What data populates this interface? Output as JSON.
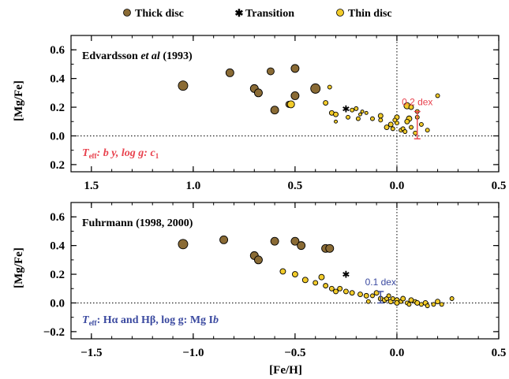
{
  "colors": {
    "thick": "#8a6b35",
    "thin": "#f2cb2a",
    "transition": "#000000",
    "red_annotation": "#e8424e",
    "blue_annotation": "#3b4aa0",
    "axis": "#000000"
  },
  "legend": {
    "items": [
      {
        "key": "thick",
        "label": "Thick disc",
        "marker": "brown-circle"
      },
      {
        "key": "transition",
        "label": "Transition",
        "marker": "black-star"
      },
      {
        "key": "thin",
        "label": "Thin disc",
        "marker": "yellow-circle"
      }
    ]
  },
  "chart_data": [
    {
      "type": "scatter",
      "title": "Edvardsson et al (1993)",
      "title_parts": {
        "pre": "Edvardsson ",
        "italic": "et al",
        "post": " (1993)"
      },
      "xlabel": "",
      "ylabel": "[Mg/Fe]",
      "xlim": [
        1.6,
        -0.5
      ],
      "ylim": [
        -0.25,
        0.7
      ],
      "xticks": [
        1.5,
        1.0,
        0.5,
        0.0,
        -0.5
      ],
      "xtick_labels": [
        "1.5",
        "1.0",
        "0.5",
        "0.0",
        "0.5"
      ],
      "yticks": [
        0.6,
        0.4,
        0.2,
        0.0,
        -0.2
      ],
      "ytick_labels": [
        "0.6",
        "0.4",
        "0.2",
        "0.0",
        "0.2"
      ],
      "annotation": {
        "text": "0.2 dex",
        "x": -0.1,
        "y_low": -0.02,
        "y_high": 0.17
      },
      "method_label": {
        "teff": "eff",
        "rest": ": b     y, log g: c",
        "sub": "1"
      },
      "series": [
        {
          "name": "Thick disc",
          "key": "thick",
          "points": [
            [
              1.05,
              0.35,
              6
            ],
            [
              0.82,
              0.44,
              5
            ],
            [
              0.7,
              0.33,
              5
            ],
            [
              0.68,
              0.3,
              5
            ],
            [
              0.6,
              0.18,
              5
            ],
            [
              0.62,
              0.45,
              4.5
            ],
            [
              0.5,
              0.47,
              5
            ],
            [
              0.5,
              0.28,
              5
            ],
            [
              0.4,
              0.33,
              6
            ],
            [
              0.53,
              0.22,
              4
            ]
          ]
        },
        {
          "name": "Transition",
          "key": "transition",
          "points": [
            [
              0.25,
              0.19,
              4
            ]
          ]
        },
        {
          "name": "Thin disc",
          "key": "thin",
          "points": [
            [
              0.52,
              0.22,
              4.5
            ],
            [
              0.33,
              0.34,
              2.5
            ],
            [
              0.35,
              0.23,
              3
            ],
            [
              0.32,
              0.16,
              3
            ],
            [
              0.3,
              0.15,
              3
            ],
            [
              0.3,
              0.1,
              2
            ],
            [
              0.24,
              0.13,
              2.5
            ],
            [
              0.22,
              0.18,
              2.5
            ],
            [
              0.2,
              0.19,
              2.5
            ],
            [
              0.19,
              0.12,
              2.5
            ],
            [
              0.18,
              0.15,
              2
            ],
            [
              0.17,
              0.17,
              2
            ],
            [
              0.15,
              0.16,
              2
            ],
            [
              0.12,
              0.12,
              2.5
            ],
            [
              0.08,
              0.14,
              3
            ],
            [
              0.08,
              0.11,
              2.5
            ],
            [
              0.05,
              0.06,
              3
            ],
            [
              0.03,
              0.08,
              3
            ],
            [
              0.02,
              0.05,
              2.5
            ],
            [
              0.0,
              0.13,
              3
            ],
            [
              0.0,
              0.09,
              2.5
            ],
            [
              -0.02,
              0.04,
              2.5
            ],
            [
              -0.03,
              0.05,
              2.5
            ],
            [
              -0.05,
              0.21,
              4
            ],
            [
              -0.07,
              0.2,
              3
            ],
            [
              -0.06,
              0.12,
              3.5
            ],
            [
              -0.05,
              0.1,
              3
            ],
            [
              -0.07,
              0.06,
              2.5
            ],
            [
              -0.1,
              0.17,
              2.5
            ],
            [
              -0.1,
              0.13,
              2.5
            ],
            [
              -0.12,
              0.08,
              2.5
            ],
            [
              -0.15,
              0.04,
              2.5
            ],
            [
              -0.2,
              0.28,
              2.5
            ],
            [
              -0.04,
              0.03,
              2.5
            ],
            [
              0.01,
              0.11,
              2.5
            ],
            [
              -0.09,
              0.02,
              2.5
            ]
          ]
        }
      ]
    },
    {
      "type": "scatter",
      "title": "Fuhrmann (1998, 2000)",
      "xlabel": "[Fe/H]",
      "ylabel": "[Mg/Fe]",
      "xlim": [
        -1.6,
        0.5
      ],
      "ylim": [
        -0.25,
        0.7
      ],
      "xticks": [
        -1.5,
        -1.0,
        -0.5,
        0.0,
        0.5
      ],
      "xtick_labels": [
        "−1.5",
        "−1.0",
        "−0.5",
        "0.0",
        "0.5"
      ],
      "yticks": [
        0.6,
        0.4,
        0.2,
        0.0,
        -0.2
      ],
      "ytick_labels": [
        "0.6",
        "0.4",
        "0.2",
        "0.0",
        "−0.2"
      ],
      "annotation": {
        "text": "0.1 dex",
        "x": -0.08,
        "y_low": 0.0,
        "y_high": 0.08
      },
      "method_label": {
        "teff": "eff",
        "rest": ": Hα and Hβ, log g: Mg I",
        "tail": "b"
      },
      "series": [
        {
          "name": "Thick disc",
          "key": "thick",
          "points": [
            [
              -1.05,
              0.41,
              6
            ],
            [
              -0.85,
              0.44,
              5
            ],
            [
              -0.7,
              0.33,
              5
            ],
            [
              -0.68,
              0.3,
              5
            ],
            [
              -0.6,
              0.43,
              5
            ],
            [
              -0.5,
              0.43,
              5
            ],
            [
              -0.47,
              0.4,
              5
            ],
            [
              -0.35,
              0.38,
              5
            ],
            [
              -0.33,
              0.38,
              5
            ]
          ]
        },
        {
          "name": "Transition",
          "key": "transition",
          "points": [
            [
              -0.25,
              0.2,
              4
            ]
          ]
        },
        {
          "name": "Thin disc",
          "key": "thin",
          "points": [
            [
              -0.56,
              0.22,
              3.5
            ],
            [
              -0.5,
              0.2,
              3.5
            ],
            [
              -0.45,
              0.16,
              3.5
            ],
            [
              -0.4,
              0.14,
              3
            ],
            [
              -0.37,
              0.18,
              3.5
            ],
            [
              -0.35,
              0.12,
              3
            ],
            [
              -0.32,
              0.1,
              3
            ],
            [
              -0.3,
              0.08,
              3
            ],
            [
              -0.28,
              0.1,
              3
            ],
            [
              -0.25,
              0.08,
              3
            ],
            [
              -0.22,
              0.07,
              3
            ],
            [
              -0.18,
              0.06,
              3
            ],
            [
              -0.15,
              0.05,
              3
            ],
            [
              -0.12,
              0.05,
              2.5
            ],
            [
              -0.1,
              0.07,
              3
            ],
            [
              -0.08,
              0.03,
              3
            ],
            [
              -0.06,
              0.02,
              3
            ],
            [
              -0.05,
              0.03,
              2.5
            ],
            [
              -0.03,
              0.01,
              3
            ],
            [
              -0.02,
              0.03,
              2.5
            ],
            [
              0.0,
              0.02,
              3
            ],
            [
              0.0,
              0.0,
              3
            ],
            [
              0.02,
              0.01,
              2.5
            ],
            [
              0.03,
              0.03,
              3
            ],
            [
              0.05,
              0.0,
              2.5
            ],
            [
              0.07,
              0.02,
              3
            ],
            [
              0.09,
              0.01,
              2.5
            ],
            [
              0.1,
              0.0,
              3
            ],
            [
              0.12,
              -0.01,
              2.5
            ],
            [
              0.14,
              0.0,
              3
            ],
            [
              0.15,
              -0.02,
              2.5
            ],
            [
              0.18,
              -0.01,
              2.5
            ],
            [
              0.2,
              0.01,
              3
            ],
            [
              0.22,
              -0.01,
              2.5
            ],
            [
              0.27,
              0.03,
              2.5
            ],
            [
              -0.14,
              0.01,
              2.5
            ],
            [
              -0.04,
              0.05,
              2.5
            ],
            [
              0.06,
              -0.01,
              2.5
            ]
          ]
        }
      ]
    }
  ]
}
